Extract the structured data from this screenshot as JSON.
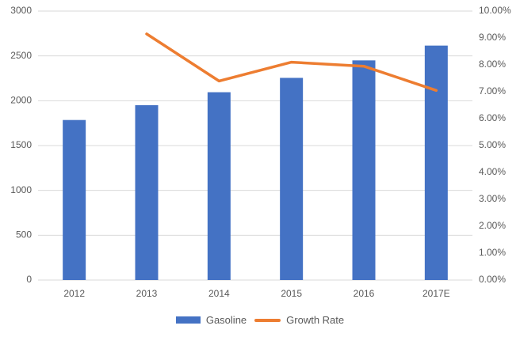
{
  "chart": {
    "background_color": "#ffffff",
    "text_color": "#595959",
    "grid_color": "#d9d9d9",
    "bar_color": "#4472C4",
    "line_color": "#ED7D31",
    "legend": [
      {
        "label": "Gasoline",
        "swatch": "bar-swatch",
        "color": "#4472C4"
      },
      {
        "label": "Growth Rate",
        "swatch": "line-swatch",
        "color": "#ED7D31"
      }
    ]
  },
  "chart_data": {
    "type": "bar",
    "subtype": "combo-bar-line-dual-axis",
    "categories": [
      "2012",
      "2013",
      "2014",
      "2015",
      "2016",
      "2017E"
    ],
    "series": [
      {
        "name": "Gasoline",
        "type": "bar",
        "axis": "left",
        "color": "#4472C4",
        "values": [
          1785,
          1950,
          2095,
          2255,
          2450,
          2615
        ]
      },
      {
        "name": "Growth Rate",
        "type": "line",
        "axis": "right",
        "color": "#ED7D31",
        "values": [
          null,
          9.15,
          7.4,
          8.1,
          7.95,
          7.05
        ]
      }
    ],
    "left_axis": {
      "min": 0,
      "max": 3000,
      "step": 500,
      "tick_labels": [
        "3000",
        "2500",
        "2000",
        "1500",
        "1000",
        "500",
        "0"
      ]
    },
    "right_axis": {
      "min": 0,
      "max": 10,
      "step": 1,
      "tick_labels": [
        "10.00%",
        "9.00%",
        "8.00%",
        "7.00%",
        "6.00%",
        "5.00%",
        "4.00%",
        "3.00%",
        "2.00%",
        "1.00%",
        "0.00%"
      ]
    },
    "grid": true,
    "gridlines_at": "left-axis-ticks",
    "legend_position": "bottom"
  }
}
